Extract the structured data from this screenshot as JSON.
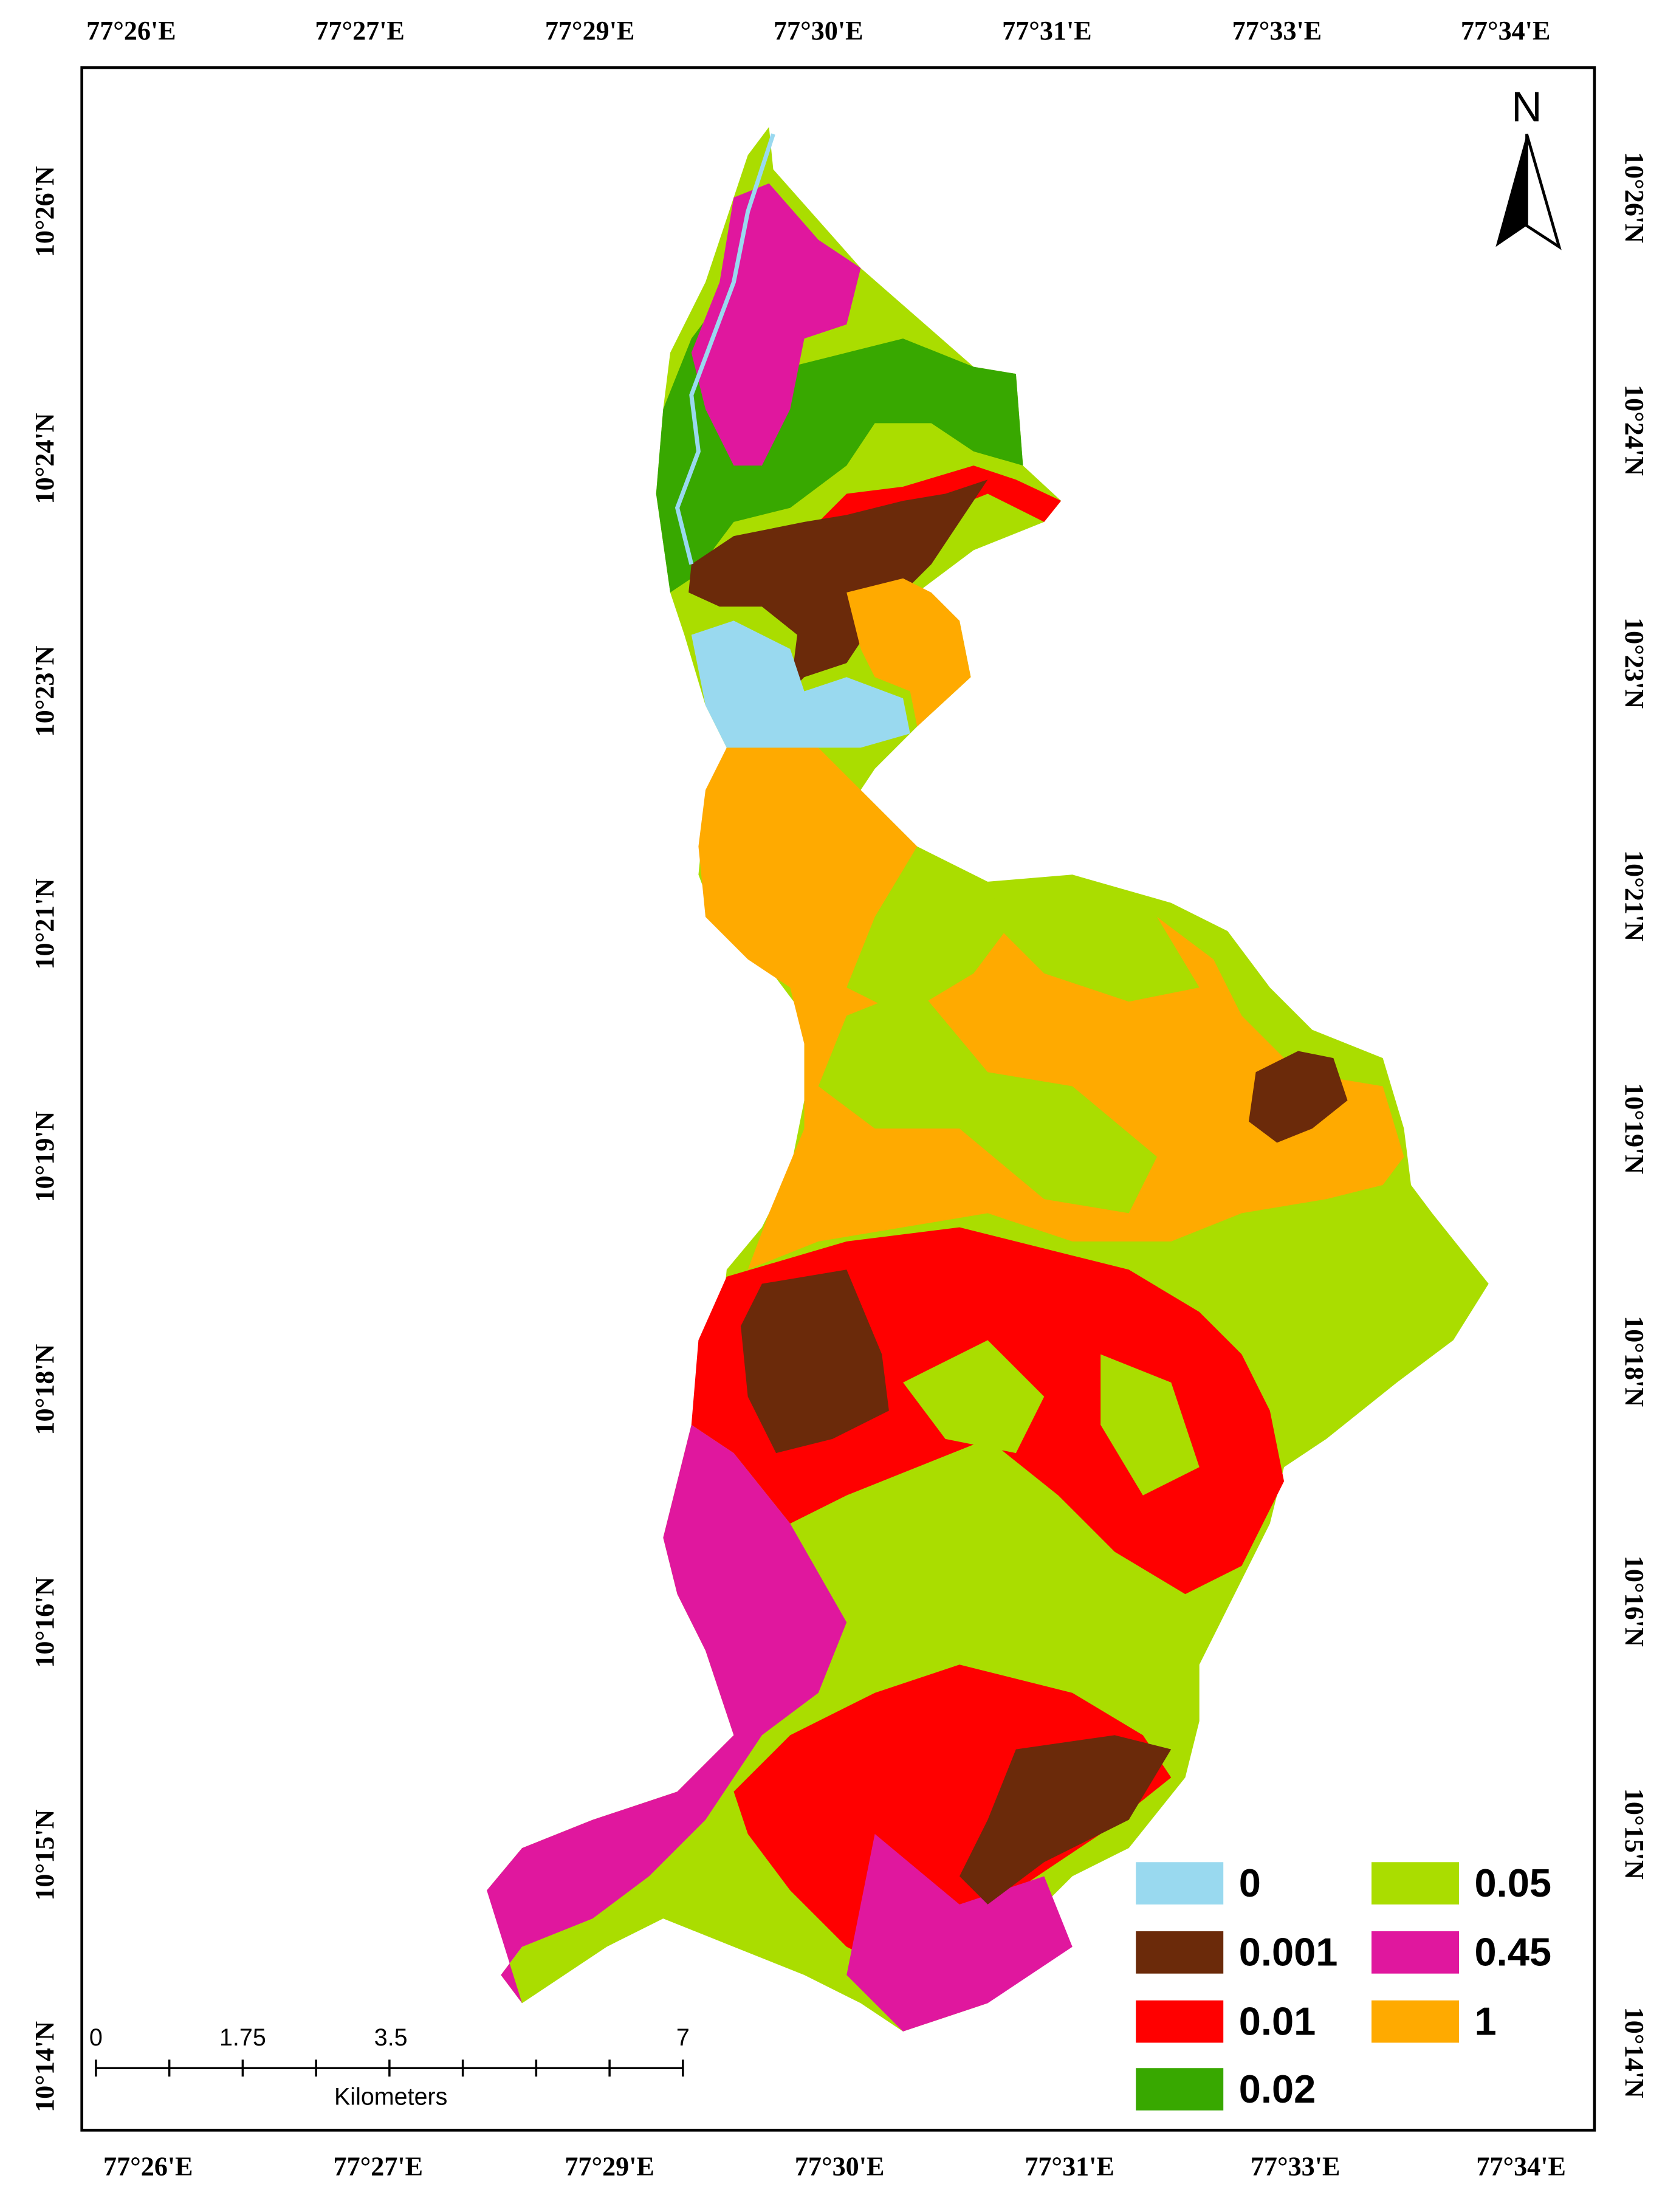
{
  "graticule": {
    "top": [
      "77°26'E",
      "77°27'E",
      "77°29'E",
      "77°30'E",
      "77°31'E",
      "77°33'E",
      "77°34'E"
    ],
    "bottom": [
      "77°26'E",
      "77°27'E",
      "77°29'E",
      "77°30'E",
      "77°31'E",
      "77°33'E",
      "77°34'E"
    ],
    "left": [
      "10°26'N",
      "10°24'N",
      "10°23'N",
      "10°21'N",
      "10°19'N",
      "10°18'N",
      "10°16'N",
      "10°15'N",
      "10°14'N"
    ],
    "right": [
      "10°26'N",
      "10°24'N",
      "10°23'N",
      "10°21'N",
      "10°19'N",
      "10°18'N",
      "10°16'N",
      "10°15'N",
      "10°14'N"
    ]
  },
  "north_arrow": {
    "label": "N"
  },
  "legend": [
    {
      "label": 0,
      "color": "#99d9ef"
    },
    {
      "label": 0.001,
      "color": "#6b2a0a"
    },
    {
      "label": 0.01,
      "color": "#ff0000"
    },
    {
      "label": 0.02,
      "color": "#38a800"
    },
    {
      "label": 0.05,
      "color": "#aadd00"
    },
    {
      "label": 0.45,
      "color": "#e0179e"
    },
    {
      "label": 1,
      "color": "#ffaa00"
    }
  ],
  "scale_bar": {
    "labels": [
      0,
      1.75,
      3.5,
      7
    ],
    "unit": "Kilometers"
  }
}
